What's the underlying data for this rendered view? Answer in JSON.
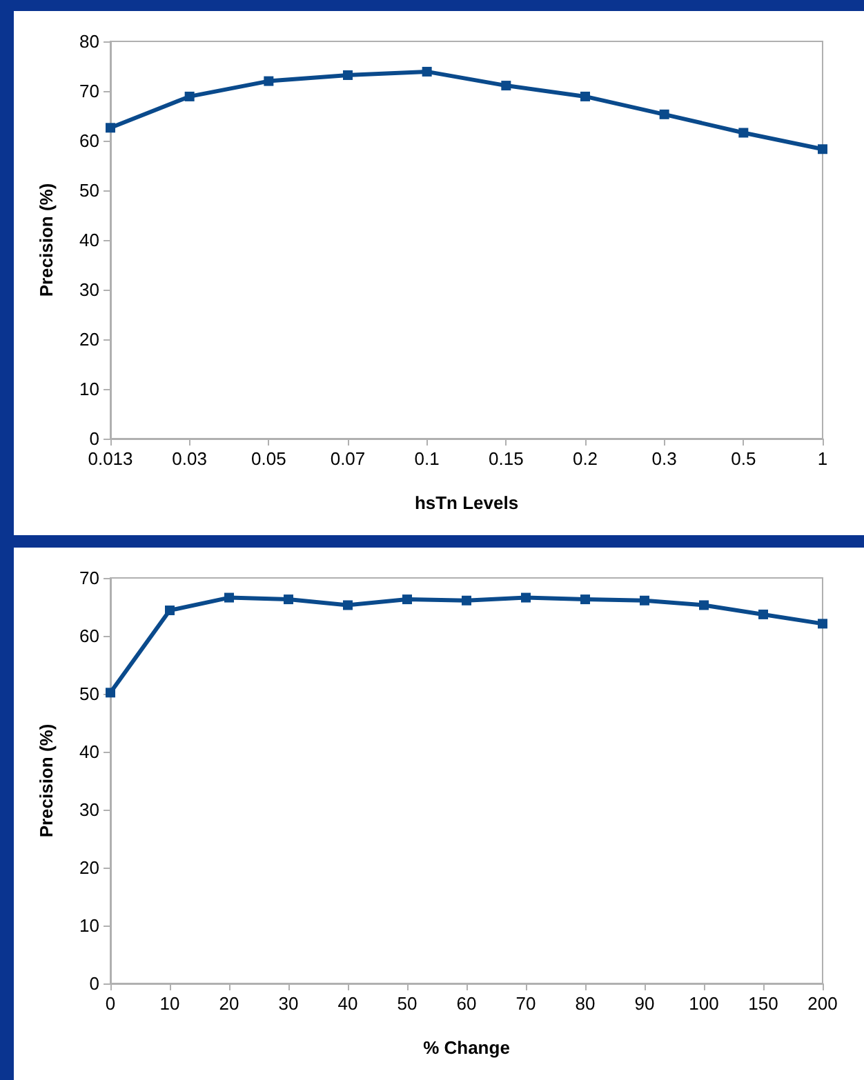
{
  "chart_data": [
    {
      "type": "line",
      "xlabel": "hsTn Levels",
      "ylabel": "Precision (%)",
      "categories": [
        "0.013",
        "0.03",
        "0.05",
        "0.07",
        "0.1",
        "0.15",
        "0.2",
        "0.3",
        "0.5",
        "1"
      ],
      "series": [
        {
          "color": "#0a4a8c",
          "values": [
            62.6,
            68.9,
            72.0,
            73.2,
            73.9,
            71.1,
            68.9,
            65.3,
            61.6,
            58.3
          ]
        }
      ],
      "ylim": [
        0,
        80
      ],
      "yticks": [
        0,
        10,
        20,
        30,
        40,
        50,
        60,
        70,
        80
      ],
      "grid": false,
      "marker": "square",
      "line_style": "solid"
    },
    {
      "type": "line",
      "xlabel": "% Change",
      "ylabel": "Precision (%)",
      "categories": [
        "0",
        "10",
        "20",
        "30",
        "40",
        "50",
        "60",
        "70",
        "80",
        "90",
        "100",
        "150",
        "200"
      ],
      "series": [
        {
          "color": "#0a4a8c",
          "values": [
            50.2,
            64.4,
            66.6,
            66.3,
            65.3,
            66.3,
            66.1,
            66.6,
            66.3,
            66.1,
            65.3,
            63.7,
            62.1
          ]
        }
      ],
      "ylim": [
        0,
        70
      ],
      "yticks": [
        0,
        10,
        20,
        30,
        40,
        50,
        60,
        70
      ],
      "grid": false,
      "marker": "square",
      "line_style": "solid"
    }
  ]
}
